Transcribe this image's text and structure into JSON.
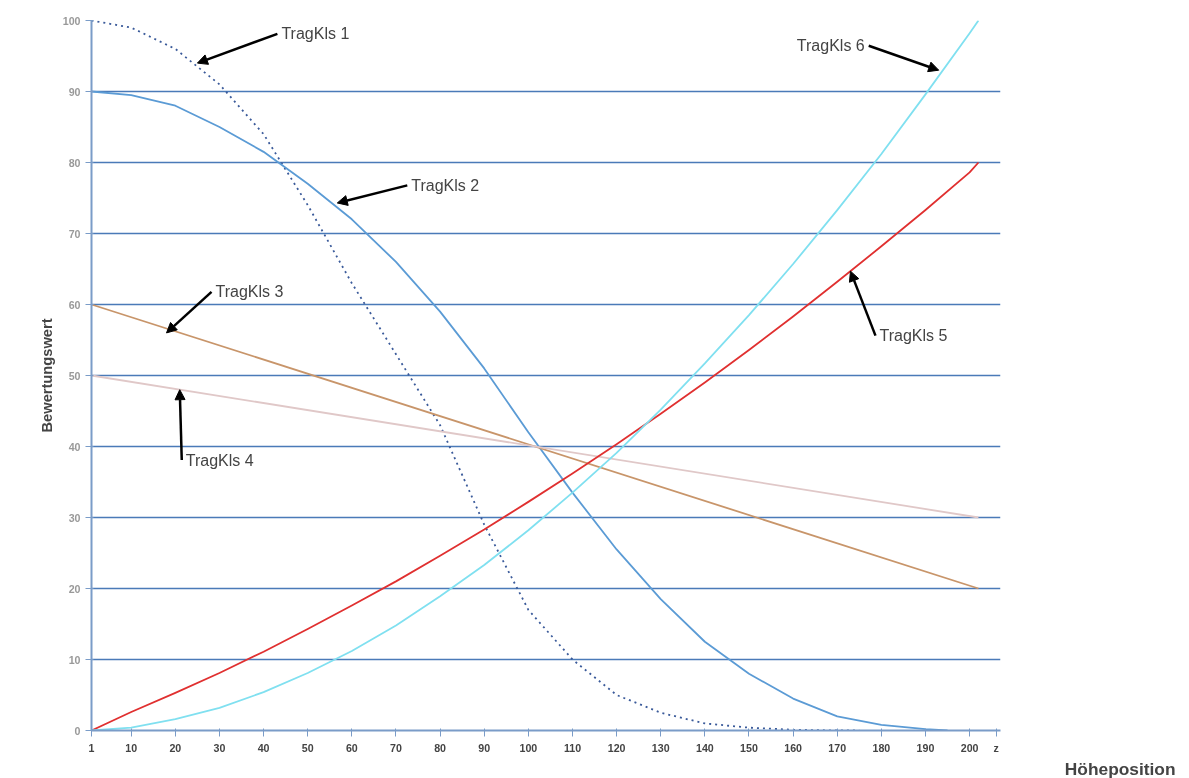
{
  "chart_data": {
    "type": "line",
    "xlabel": "Höheposition",
    "ylabel": "Bewertungswert",
    "xlim": [
      1,
      207
    ],
    "ylim": [
      0,
      100
    ],
    "xticks": [
      1,
      10,
      20,
      30,
      40,
      50,
      60,
      70,
      80,
      90,
      100,
      110,
      120,
      130,
      140,
      150,
      160,
      170,
      180,
      190,
      200,
      {
        "value": 206,
        "label": "z"
      }
    ],
    "yticks": [
      0,
      10,
      20,
      30,
      40,
      50,
      60,
      70,
      80,
      90,
      100
    ],
    "grid": "y",
    "series": [
      {
        "color": "#3a5a9a",
        "line_style": "dotted",
        "x": [
          1,
          10,
          20,
          30,
          40,
          50,
          60,
          70,
          80,
          90,
          100,
          110,
          120,
          130,
          140,
          150,
          160,
          170,
          175
        ],
        "values": [
          100,
          99,
          96,
          91,
          84,
          74,
          63,
          53,
          43,
          29,
          17,
          10,
          5,
          2.5,
          1,
          0.4,
          0.1,
          0,
          0
        ]
      },
      {
        "color": "#5b9bd5",
        "line_style": "solid",
        "x": [
          1,
          10,
          20,
          30,
          40,
          50,
          60,
          70,
          80,
          90,
          100,
          110,
          120,
          130,
          140,
          150,
          160,
          170,
          180,
          190,
          195
        ],
        "values": [
          90,
          89.5,
          88,
          85,
          81.5,
          77,
          72,
          66,
          59,
          51,
          42,
          33.5,
          25.5,
          18.5,
          12.5,
          8,
          4.5,
          2,
          0.8,
          0.2,
          0
        ]
      },
      {
        "color": "#c8956a",
        "line_style": "solid",
        "x": [
          1,
          202
        ],
        "values": [
          60,
          20
        ]
      },
      {
        "color": "#e0c8c8",
        "line_style": "solid",
        "x": [
          1,
          202
        ],
        "values": [
          50,
          30
        ]
      },
      {
        "color": "#e03030",
        "line_style": "solid",
        "x": [
          1,
          10,
          20,
          30,
          40,
          50,
          60,
          70,
          80,
          90,
          100,
          110,
          120,
          130,
          140,
          150,
          160,
          170,
          180,
          190,
          200,
          202
        ],
        "values": [
          0,
          2.6,
          5.3,
          8.1,
          11.1,
          14.3,
          17.6,
          21,
          24.6,
          28.3,
          32.2,
          36.2,
          40.3,
          44.6,
          49,
          53.6,
          58.3,
          63.2,
          68.2,
          73.3,
          78.6,
          80
        ]
      },
      {
        "color": "#80e0f0",
        "line_style": "solid",
        "x": [
          1,
          10,
          20,
          30,
          40,
          50,
          60,
          70,
          80,
          90,
          100,
          110,
          120,
          130,
          140,
          150,
          160,
          170,
          180,
          190,
          200,
          202
        ],
        "values": [
          0,
          0.4,
          1.6,
          3.2,
          5.4,
          8.1,
          11.2,
          14.8,
          18.9,
          23.3,
          28.2,
          33.5,
          39.1,
          45.2,
          51.7,
          58.5,
          65.7,
          73.3,
          81.2,
          89.6,
          98.2,
          100
        ]
      }
    ],
    "annotations": [
      {
        "text": "TragKls 1",
        "x": 25,
        "y": 94
      },
      {
        "text": "TragKls 2",
        "x": 56.7,
        "y": 74.3
      },
      {
        "text": "TragKls 3",
        "x": 18,
        "y": 56
      },
      {
        "text": "TragKls 4",
        "x": 21,
        "y": 48
      },
      {
        "text": "TragKls 5",
        "x": 173,
        "y": 64.7
      },
      {
        "text": "TragKls 6",
        "x": 193,
        "y": 93
      }
    ]
  }
}
